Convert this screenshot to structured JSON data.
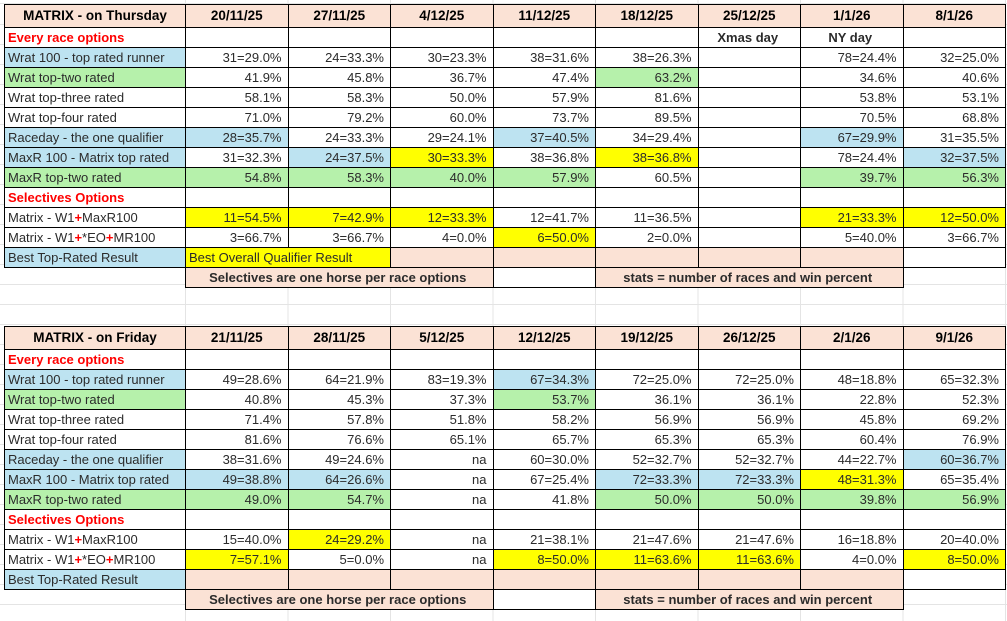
{
  "colors": {
    "peach": "#FBE2D5",
    "blue": "#BDE3F1",
    "green": "#B6F1AB",
    "yellow": "#FFFF00",
    "red": "#FF0000",
    "result_green": "#2F7E1E"
  },
  "tables": [
    {
      "name": "matrix-thursday-table",
      "title": "MATRIX - on Thursday",
      "dates": [
        "20/11/25",
        "27/11/25",
        "4/12/25",
        "11/12/25",
        "18/12/25",
        "25/12/25",
        "1/1/26",
        "8/1/26"
      ],
      "rows": [
        {
          "label": "Every race options",
          "lbg": "w",
          "lstyle": "red",
          "cells": [
            [
              "",
              "w"
            ],
            [
              "",
              "w"
            ],
            [
              "",
              "w"
            ],
            [
              "",
              "w"
            ],
            [
              "",
              "w"
            ],
            [
              "Xmas day",
              "w",
              1,
              "day"
            ],
            [
              "NY day",
              "w",
              1,
              "day"
            ],
            [
              "",
              "w"
            ]
          ]
        },
        {
          "label": "Wrat 100 - top rated runner",
          "lbg": "b",
          "cells": [
            [
              "31=29.0%",
              "w"
            ],
            [
              "24=33.3%",
              "w"
            ],
            [
              "30=23.3%",
              "w"
            ],
            [
              "38=31.6%",
              "w"
            ],
            [
              "38=26.3%",
              "w"
            ],
            [
              "",
              "w"
            ],
            [
              "78=24.4%",
              "w"
            ],
            [
              "32=25.0%",
              "w"
            ]
          ]
        },
        {
          "label": "Wrat top-two rated",
          "lbg": "g",
          "cells": [
            [
              "41.9%",
              "w"
            ],
            [
              "45.8%",
              "w"
            ],
            [
              "36.7%",
              "w"
            ],
            [
              "47.4%",
              "w"
            ],
            [
              "63.2%",
              "g"
            ],
            [
              "",
              "w"
            ],
            [
              "34.6%",
              "w"
            ],
            [
              "40.6%",
              "w"
            ]
          ]
        },
        {
          "label": "Wrat top-three rated",
          "lbg": "w",
          "cells": [
            [
              "58.1%",
              "w"
            ],
            [
              "58.3%",
              "w"
            ],
            [
              "50.0%",
              "w"
            ],
            [
              "57.9%",
              "w"
            ],
            [
              "81.6%",
              "w"
            ],
            [
              "",
              "w"
            ],
            [
              "53.8%",
              "w"
            ],
            [
              "53.1%",
              "w"
            ]
          ]
        },
        {
          "label": "Wrat top-four rated",
          "lbg": "w",
          "cells": [
            [
              "71.0%",
              "w"
            ],
            [
              "79.2%",
              "w"
            ],
            [
              "60.0%",
              "w"
            ],
            [
              "73.7%",
              "w"
            ],
            [
              "89.5%",
              "w"
            ],
            [
              "",
              "w"
            ],
            [
              "70.5%",
              "w"
            ],
            [
              "68.8%",
              "w"
            ]
          ]
        },
        {
          "label": "Raceday - the one qualifier",
          "lbg": "b",
          "cells": [
            [
              "28=35.7%",
              "b"
            ],
            [
              "24=33.3%",
              "w"
            ],
            [
              "29=24.1%",
              "w"
            ],
            [
              "37=40.5%",
              "b"
            ],
            [
              "34=29.4%",
              "w"
            ],
            [
              "",
              "w"
            ],
            [
              "67=29.9%",
              "b"
            ],
            [
              "31=35.5%",
              "w"
            ]
          ]
        },
        {
          "label": "MaxR 100 - Matrix top rated",
          "lbg": "b",
          "cells": [
            [
              "31=32.3%",
              "w"
            ],
            [
              "24=37.5%",
              "b"
            ],
            [
              "30=33.3%",
              "y"
            ],
            [
              "38=36.8%",
              "w"
            ],
            [
              "38=36.8%",
              "y"
            ],
            [
              "",
              "w"
            ],
            [
              "78=24.4%",
              "w"
            ],
            [
              "32=37.5%",
              "b"
            ]
          ]
        },
        {
          "label": "MaxR top-two rated",
          "lbg": "g",
          "cells": [
            [
              "54.8%",
              "g"
            ],
            [
              "58.3%",
              "g"
            ],
            [
              "40.0%",
              "g"
            ],
            [
              "57.9%",
              "g"
            ],
            [
              "60.5%",
              "w"
            ],
            [
              "",
              "w"
            ],
            [
              "39.7%",
              "g"
            ],
            [
              "56.3%",
              "g"
            ]
          ]
        },
        {
          "label": "Selectives Options",
          "lbg": "w",
          "lstyle": "red",
          "cells": [
            [
              "",
              "w"
            ],
            [
              "",
              "w"
            ],
            [
              "",
              "w"
            ],
            [
              "",
              "w"
            ],
            [
              "",
              "w"
            ],
            [
              "",
              "w"
            ],
            [
              "",
              "w"
            ],
            [
              "",
              "w"
            ]
          ]
        },
        {
          "label": "Matrix - W1+MaxR100",
          "lbg": "w",
          "plus_red": true,
          "cells": [
            [
              "11=54.5%",
              "y"
            ],
            [
              "7=42.9%",
              "y"
            ],
            [
              "12=33.3%",
              "y"
            ],
            [
              "12=41.7%",
              "w"
            ],
            [
              "11=36.5%",
              "w"
            ],
            [
              "",
              "w"
            ],
            [
              "21=33.3%",
              "y"
            ],
            [
              "12=50.0%",
              "y"
            ]
          ]
        },
        {
          "label": "Matrix - W1+*EO+MR100",
          "lbg": "w",
          "plus_red": true,
          "cells": [
            [
              "3=66.7%",
              "w"
            ],
            [
              "3=66.7%",
              "w"
            ],
            [
              "4=0.0%",
              "w"
            ],
            [
              "6=50.0%",
              "y"
            ],
            [
              "2=0.0%",
              "w"
            ],
            [
              "",
              "w"
            ],
            [
              "5=40.0%",
              "w"
            ],
            [
              "3=66.7%",
              "w"
            ]
          ]
        },
        {
          "label": "Best Top-Rated Result",
          "lbg": "b",
          "cells": [
            [
              "Best Overall Qualifier Result",
              "y",
              2,
              "result"
            ],
            [
              "",
              "p"
            ],
            [
              "",
              "p"
            ],
            [
              "",
              "p"
            ],
            [
              "",
              "p"
            ],
            [
              "",
              "p"
            ],
            [
              "",
              "w"
            ]
          ]
        },
        {
          "label": "",
          "lbg": "n",
          "cells": [
            [
              "Selectives are one horse per race options",
              "p",
              3,
              "note"
            ],
            [
              "",
              "w"
            ],
            [
              "stats = number of races and win percent",
              "p",
              3,
              "note"
            ],
            [
              "",
              "n"
            ]
          ]
        }
      ]
    },
    {
      "name": "matrix-friday-table",
      "title": "MATRIX - on Friday",
      "dates": [
        "21/11/25",
        "28/11/25",
        "5/12/25",
        "12/12/25",
        "19/12/25",
        "26/12/25",
        "2/1/26",
        "9/1/26"
      ],
      "rows": [
        {
          "label": "Every race options",
          "lbg": "w",
          "lstyle": "red",
          "cells": [
            [
              "",
              "w"
            ],
            [
              "",
              "w"
            ],
            [
              "",
              "w"
            ],
            [
              "",
              "w"
            ],
            [
              "",
              "w"
            ],
            [
              "",
              "w"
            ],
            [
              "",
              "w"
            ],
            [
              "",
              "w"
            ]
          ]
        },
        {
          "label": "Wrat 100 - top rated runner",
          "lbg": "b",
          "cells": [
            [
              "49=28.6%",
              "w"
            ],
            [
              "64=21.9%",
              "w"
            ],
            [
              "83=19.3%",
              "w"
            ],
            [
              "67=34.3%",
              "b"
            ],
            [
              "72=25.0%",
              "w"
            ],
            [
              "72=25.0%",
              "w"
            ],
            [
              "48=18.8%",
              "w"
            ],
            [
              "65=32.3%",
              "w"
            ]
          ]
        },
        {
          "label": "Wrat top-two rated",
          "lbg": "g",
          "cells": [
            [
              "40.8%",
              "w"
            ],
            [
              "45.3%",
              "w"
            ],
            [
              "37.3%",
              "w"
            ],
            [
              "53.7%",
              "g"
            ],
            [
              "36.1%",
              "w"
            ],
            [
              "36.1%",
              "w"
            ],
            [
              "22.8%",
              "w"
            ],
            [
              "52.3%",
              "w"
            ]
          ]
        },
        {
          "label": "Wrat top-three rated",
          "lbg": "w",
          "cells": [
            [
              "71.4%",
              "w"
            ],
            [
              "57.8%",
              "w"
            ],
            [
              "51.8%",
              "w"
            ],
            [
              "58.2%",
              "w"
            ],
            [
              "56.9%",
              "w"
            ],
            [
              "56.9%",
              "w"
            ],
            [
              "45.8%",
              "w"
            ],
            [
              "69.2%",
              "w"
            ]
          ]
        },
        {
          "label": "Wrat top-four rated",
          "lbg": "w",
          "cells": [
            [
              "81.6%",
              "w"
            ],
            [
              "76.6%",
              "w"
            ],
            [
              "65.1%",
              "w"
            ],
            [
              "65.7%",
              "w"
            ],
            [
              "65.3%",
              "w"
            ],
            [
              "65.3%",
              "w"
            ],
            [
              "60.4%",
              "w"
            ],
            [
              "76.9%",
              "w"
            ]
          ]
        },
        {
          "label": "Raceday - the one qualifier",
          "lbg": "b",
          "cells": [
            [
              "38=31.6%",
              "w"
            ],
            [
              "49=24.6%",
              "w"
            ],
            [
              "na",
              "w"
            ],
            [
              "60=30.0%",
              "w"
            ],
            [
              "52=32.7%",
              "w"
            ],
            [
              "52=32.7%",
              "w"
            ],
            [
              "44=22.7%",
              "w"
            ],
            [
              "60=36.7%",
              "b"
            ]
          ]
        },
        {
          "label": "MaxR 100 - Matrix top rated",
          "lbg": "b",
          "cells": [
            [
              "49=38.8%",
              "b"
            ],
            [
              "64=26.6%",
              "b"
            ],
            [
              "na",
              "w"
            ],
            [
              "67=25.4%",
              "w"
            ],
            [
              "72=33.3%",
              "b"
            ],
            [
              "72=33.3%",
              "b"
            ],
            [
              "48=31.3%",
              "y"
            ],
            [
              "65=35.4%",
              "w"
            ]
          ]
        },
        {
          "label": "MaxR top-two rated",
          "lbg": "g",
          "cells": [
            [
              "49.0%",
              "g"
            ],
            [
              "54.7%",
              "g"
            ],
            [
              "na",
              "w"
            ],
            [
              "41.8%",
              "w"
            ],
            [
              "50.0%",
              "g"
            ],
            [
              "50.0%",
              "g"
            ],
            [
              "39.8%",
              "g"
            ],
            [
              "56.9%",
              "g"
            ]
          ]
        },
        {
          "label": "Selectives Options",
          "lbg": "w",
          "lstyle": "red",
          "cells": [
            [
              "",
              "w"
            ],
            [
              "",
              "w"
            ],
            [
              "",
              "w"
            ],
            [
              "",
              "w"
            ],
            [
              "",
              "w"
            ],
            [
              "",
              "w"
            ],
            [
              "",
              "w"
            ],
            [
              "",
              "w"
            ]
          ]
        },
        {
          "label": "Matrix - W1+MaxR100",
          "lbg": "w",
          "plus_red": true,
          "cells": [
            [
              "15=40.0%",
              "w"
            ],
            [
              "24=29.2%",
              "y"
            ],
            [
              "na",
              "w"
            ],
            [
              "21=38.1%",
              "w"
            ],
            [
              "21=47.6%",
              "w"
            ],
            [
              "21=47.6%",
              "w"
            ],
            [
              "16=18.8%",
              "w"
            ],
            [
              "20=40.0%",
              "w"
            ]
          ]
        },
        {
          "label": "Matrix - W1+*EO+MR100",
          "lbg": "w",
          "plus_red": true,
          "cells": [
            [
              "7=57.1%",
              "y"
            ],
            [
              "5=0.0%",
              "w"
            ],
            [
              "na",
              "w"
            ],
            [
              "8=50.0%",
              "y"
            ],
            [
              "11=63.6%",
              "y"
            ],
            [
              "11=63.6%",
              "y"
            ],
            [
              "4=0.0%",
              "w"
            ],
            [
              "8=50.0%",
              "y"
            ]
          ]
        },
        {
          "label": "Best Top-Rated Result",
          "lbg": "b",
          "cells": [
            [
              "",
              "p"
            ],
            [
              "",
              "p"
            ],
            [
              "",
              "p"
            ],
            [
              "",
              "p"
            ],
            [
              "",
              "p"
            ],
            [
              "",
              "p"
            ],
            [
              "",
              "p"
            ],
            [
              "",
              "w"
            ]
          ]
        },
        {
          "label": "",
          "lbg": "n",
          "cells": [
            [
              "Selectives are one horse per race options",
              "p",
              3,
              "note"
            ],
            [
              "",
              "w"
            ],
            [
              "stats = number of races and win percent",
              "p",
              3,
              "note"
            ],
            [
              "",
              "n"
            ]
          ]
        }
      ]
    }
  ]
}
